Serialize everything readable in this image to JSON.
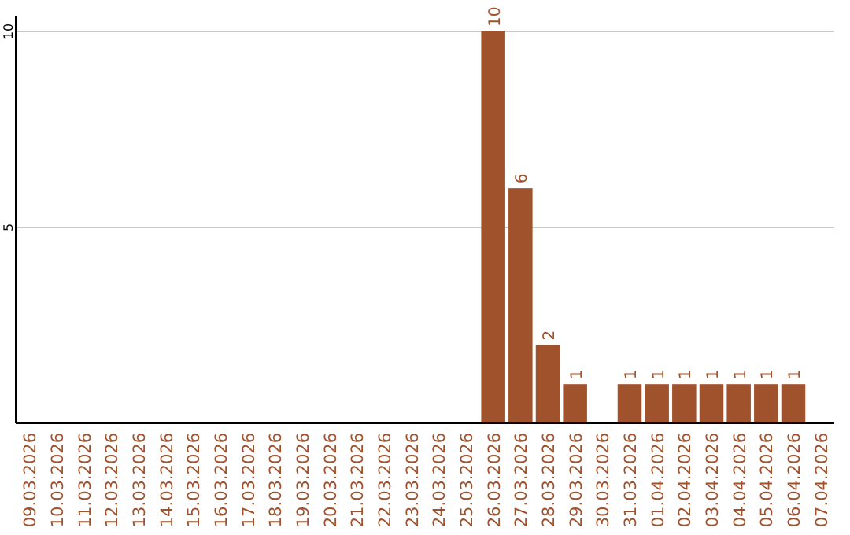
{
  "chart_data": {
    "type": "bar",
    "categories": [
      "09.03.2026",
      "10.03.2026",
      "11.03.2026",
      "12.03.2026",
      "13.03.2026",
      "14.03.2026",
      "15.03.2026",
      "16.03.2026",
      "17.03.2026",
      "18.03.2026",
      "19.03.2026",
      "20.03.2026",
      "21.03.2026",
      "22.03.2026",
      "23.03.2026",
      "24.03.2026",
      "25.03.2026",
      "26.03.2026",
      "27.03.2026",
      "28.03.2026",
      "29.03.2026",
      "30.03.2026",
      "31.03.2026",
      "01.04.2026",
      "02.04.2026",
      "03.04.2026",
      "04.04.2026",
      "05.04.2026",
      "06.04.2026",
      "07.04.2026"
    ],
    "values": [
      0,
      0,
      0,
      0,
      0,
      0,
      0,
      0,
      0,
      0,
      0,
      0,
      0,
      0,
      0,
      0,
      0,
      10,
      6,
      2,
      1,
      0,
      1,
      1,
      1,
      1,
      1,
      1,
      1,
      0
    ],
    "value_labels": [
      null,
      null,
      null,
      null,
      null,
      null,
      null,
      null,
      null,
      null,
      null,
      null,
      null,
      null,
      null,
      null,
      null,
      "10",
      "6",
      "2",
      "1",
      null,
      "1",
      "1",
      "1",
      "1",
      "1",
      "1",
      "1",
      null
    ],
    "color": "#a0522d",
    "ylim": [
      0,
      10.4
    ],
    "yticks": [
      5,
      10
    ],
    "grid": "y"
  }
}
